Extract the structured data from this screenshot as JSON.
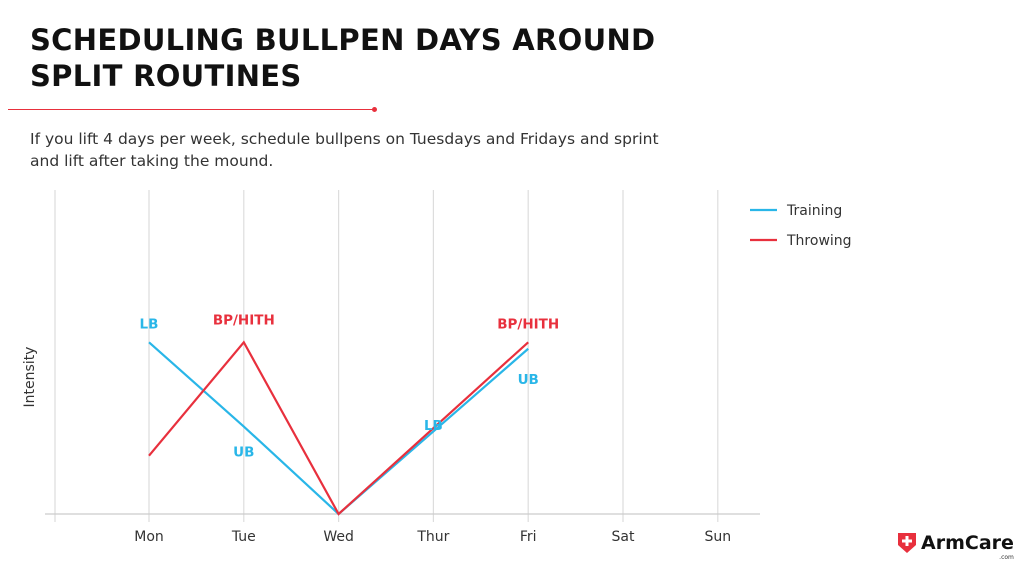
{
  "header": {
    "title": "SCHEDULING BULLPEN DAYS AROUND SPLIT ROUTINES",
    "subtitle": "If you lift 4 days per week, schedule bullpens on Tuesdays and Fridays and sprint and lift after taking the mound."
  },
  "chart_data": {
    "type": "line",
    "title": "",
    "xlabel": "",
    "ylabel": "Intensity",
    "categories": [
      "Mon",
      "Tue",
      "Wed",
      "Thur",
      "Fri",
      "Sat",
      "Sun"
    ],
    "ylim": [
      0,
      10
    ],
    "grid": "vertical",
    "legend": "top-right",
    "series": [
      {
        "name": "Training",
        "color": "#29b6e8",
        "values": [
          5.3,
          2.7,
          0,
          null,
          5.1,
          null,
          null
        ]
      },
      {
        "name": "Throwing",
        "color": "#e8303d",
        "values": [
          1.8,
          5.3,
          0,
          null,
          5.3,
          null,
          null
        ]
      }
    ],
    "annotations": [
      {
        "text": "LB",
        "x": "Mon",
        "y": 5.3,
        "series": "Training"
      },
      {
        "text": "UB",
        "x": "Tue",
        "y": 2.7,
        "series": "Training"
      },
      {
        "text": "LB",
        "x": "Thur",
        "y": 2.6,
        "series": "Training"
      },
      {
        "text": "UB",
        "x": "Fri",
        "y": 5.1,
        "series": "Training"
      },
      {
        "text": "BP/HITH",
        "x": "Tue",
        "y": 5.3,
        "series": "Throwing"
      },
      {
        "text": "BP/HITH",
        "x": "Fri",
        "y": 5.3,
        "series": "Throwing"
      }
    ]
  },
  "logo": {
    "text": "ArmCare",
    "suffix": ".com",
    "color": "#e8303d"
  }
}
